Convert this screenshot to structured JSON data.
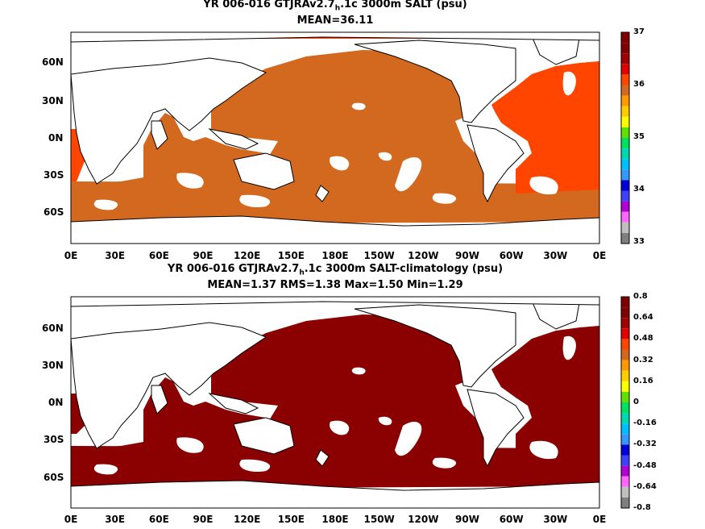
{
  "panels": [
    {
      "title_pre": "YR 006-016 GTJRAv2.7",
      "title_sub": "h",
      "title_post": ".1c 3000m SALT (psu)",
      "stats": "MEAN=36.11",
      "colorbar_labels": [
        "37",
        "36",
        "35",
        "34",
        "33"
      ],
      "colorbar_colors": [
        "#7f7f7f",
        "#bfbfbf",
        "#ff66ff",
        "#b000d8",
        "#4040ff",
        "#0000d8",
        "#3399ff",
        "#00bfff",
        "#00d8b0",
        "#00e060",
        "#60e000",
        "#ffff00",
        "#ffcc00",
        "#ff9900",
        "#d2691e",
        "#ff4500",
        "#e00000",
        "#a00000",
        "#800000",
        "#800000"
      ],
      "field_color": "#d2691e",
      "atlantic_color": "#ff4500"
    },
    {
      "title_pre": "YR 006-016 GTJRAv2.7",
      "title_sub": "h",
      "title_post": ".1c 3000m SALT-climatology (psu)",
      "stats": "MEAN=1.37   RMS=1.38   Max=1.50   Min=1.29",
      "colorbar_labels": [
        "0.8",
        "0.64",
        "0.48",
        "0.32",
        "0.16",
        "0",
        "-0.16",
        "-0.32",
        "-0.48",
        "-0.64",
        "-0.8"
      ],
      "colorbar_colors": [
        "#7f7f7f",
        "#bfbfbf",
        "#ff66ff",
        "#b000d8",
        "#4040ff",
        "#0000d8",
        "#3399ff",
        "#00bfff",
        "#00d8b0",
        "#00e060",
        "#60e000",
        "#ffff00",
        "#ffcc00",
        "#ff9900",
        "#d2691e",
        "#ff4500",
        "#e00000",
        "#a00000",
        "#800000",
        "#800000"
      ],
      "field_color": "#8b0000",
      "atlantic_color": "#8b0000"
    }
  ],
  "axes": {
    "lat_labels": [
      "60N",
      "30N",
      "0N",
      "30S",
      "60S"
    ],
    "lon_labels": [
      "0E",
      "30E",
      "60E",
      "90E",
      "120E",
      "150E",
      "180E",
      "150W",
      "120W",
      "90W",
      "60W",
      "30W",
      "0E"
    ]
  }
}
